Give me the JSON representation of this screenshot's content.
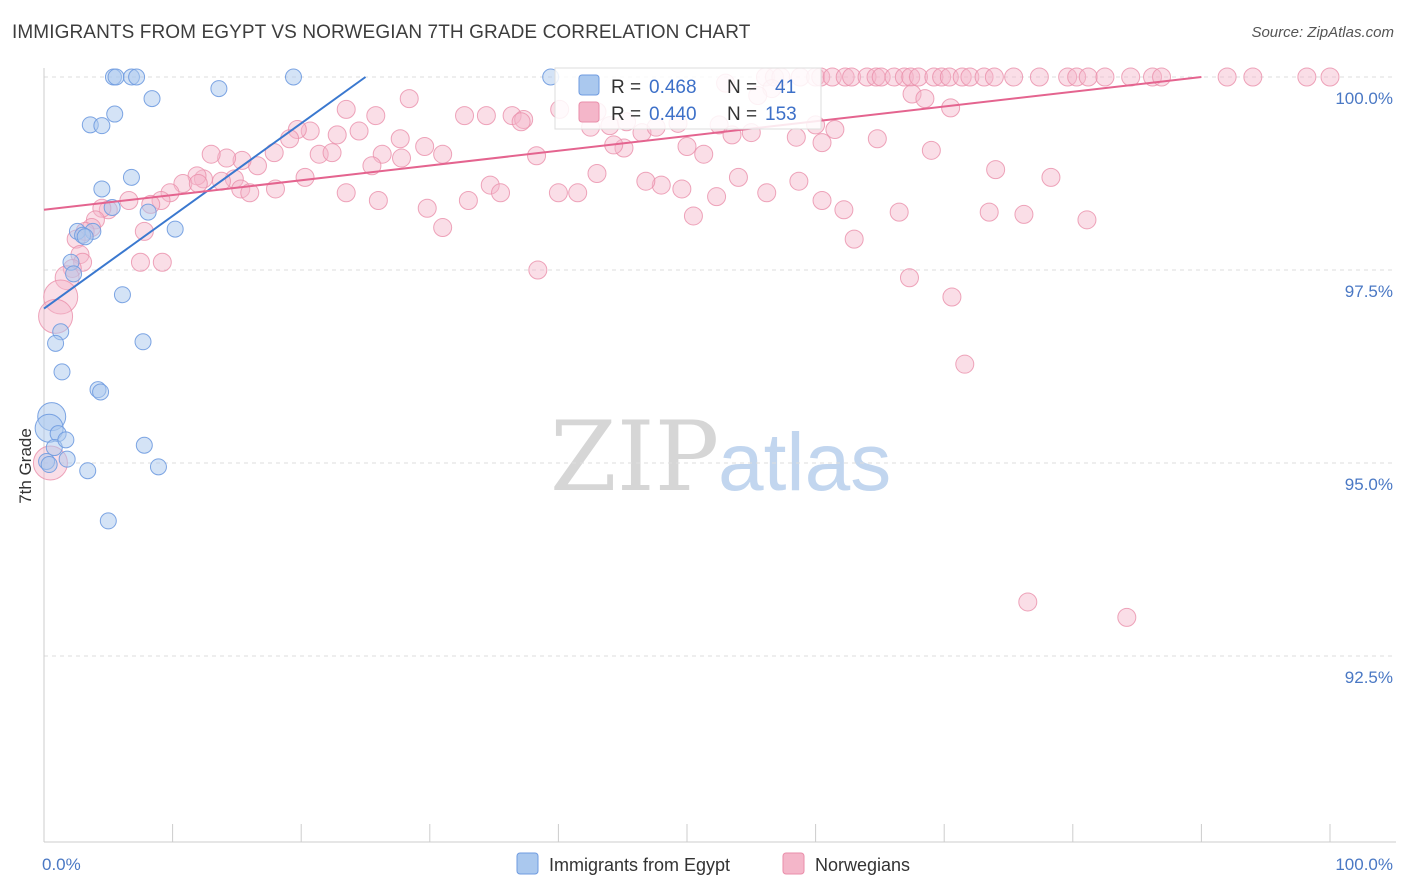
{
  "title": "IMMIGRANTS FROM EGYPT VS NORWEGIAN 7TH GRADE CORRELATION CHART",
  "source": "Source: ZipAtlas.com",
  "watermark": {
    "zip": "ZIP",
    "atlas": "atlas"
  },
  "colors": {
    "blue_fill": "#aac8ee",
    "blue_stroke": "#6f9be0",
    "blue_line": "#3a78cf",
    "pink_fill": "#f4b6c9",
    "pink_stroke": "#ea8eaa",
    "pink_line": "#e4648f",
    "tick_text": "#4a78c4",
    "grid": "#dddddd"
  },
  "legend": {
    "rows": [
      {
        "r_label": "R = ",
        "r_value": "0.468",
        "n_label": "N = ",
        "n_value": "41"
      },
      {
        "r_label": "R = ",
        "r_value": "0.440",
        "n_label": "N = ",
        "n_value": "153"
      }
    ]
  },
  "chart_data": {
    "type": "scatter",
    "title": "IMMIGRANTS FROM EGYPT VS NORWEGIAN 7TH GRADE CORRELATION CHART",
    "xlabel": "",
    "ylabel": "7th Grade",
    "xlim": [
      0,
      100
    ],
    "ylim": [
      90.2,
      100.25
    ],
    "y_ticks": [
      {
        "value": 100.0,
        "label": "100.0%"
      },
      {
        "value": 97.5,
        "label": "97.5%"
      },
      {
        "value": 95.0,
        "label": "95.0%"
      },
      {
        "value": 92.5,
        "label": "92.5%"
      }
    ],
    "x_tick_labels": [
      {
        "value": 0,
        "label": "0.0%"
      },
      {
        "value": 100,
        "label": "100.0%"
      }
    ],
    "x_minor_ticks": [
      0,
      10,
      20,
      30,
      40,
      50,
      60,
      70,
      80,
      90,
      100
    ],
    "series": [
      {
        "name": "Immigrants from Egypt",
        "color": "blue",
        "R": 0.468,
        "N": 41,
        "trend": [
          [
            0,
            97.0
          ],
          [
            25,
            100.0
          ]
        ],
        "points": [
          [
            5.4,
            100.0
          ],
          [
            5.6,
            100.0
          ],
          [
            6.8,
            100.0
          ],
          [
            7.2,
            100.0
          ],
          [
            19.4,
            100.0
          ],
          [
            39.4,
            100.0
          ],
          [
            13.6,
            99.85
          ],
          [
            8.4,
            99.72
          ],
          [
            5.5,
            99.52
          ],
          [
            3.6,
            99.38
          ],
          [
            4.5,
            99.37
          ],
          [
            6.8,
            98.7
          ],
          [
            4.5,
            98.55
          ],
          [
            5.3,
            98.31
          ],
          [
            8.1,
            98.25
          ],
          [
            10.2,
            98.03
          ],
          [
            2.6,
            98.0
          ],
          [
            3.8,
            98.0
          ],
          [
            3.0,
            97.95
          ],
          [
            3.2,
            97.93
          ],
          [
            2.1,
            97.6
          ],
          [
            2.3,
            97.45
          ],
          [
            1.3,
            96.7
          ],
          [
            0.9,
            96.55
          ],
          [
            6.1,
            97.18
          ],
          [
            7.7,
            96.57
          ],
          [
            1.4,
            96.18
          ],
          [
            4.2,
            95.95
          ],
          [
            4.4,
            95.92
          ],
          [
            0.6,
            95.6
          ],
          [
            0.4,
            95.45
          ],
          [
            1.1,
            95.38
          ],
          [
            0.8,
            95.2
          ],
          [
            1.7,
            95.3
          ],
          [
            1.8,
            95.05
          ],
          [
            0.2,
            95.02
          ],
          [
            7.8,
            95.23
          ],
          [
            0.4,
            94.98
          ],
          [
            3.4,
            94.9
          ],
          [
            8.9,
            94.95
          ],
          [
            5.0,
            94.25
          ]
        ]
      },
      {
        "name": "Norwegians",
        "color": "pink",
        "R": 0.44,
        "N": 153,
        "trend": [
          [
            0,
            98.28
          ],
          [
            90,
            100.0
          ]
        ],
        "points": [
          [
            56.1,
            100.0
          ],
          [
            56.8,
            100.0
          ],
          [
            57.3,
            100.0
          ],
          [
            58.8,
            100.0
          ],
          [
            60.0,
            100.0
          ],
          [
            60.4,
            100.0
          ],
          [
            61.3,
            100.0
          ],
          [
            62.3,
            100.0
          ],
          [
            62.8,
            100.0
          ],
          [
            64.0,
            100.0
          ],
          [
            64.7,
            100.0
          ],
          [
            65.1,
            100.0
          ],
          [
            66.1,
            100.0
          ],
          [
            66.9,
            100.0
          ],
          [
            67.4,
            100.0
          ],
          [
            68.0,
            100.0
          ],
          [
            69.2,
            100.0
          ],
          [
            69.8,
            100.0
          ],
          [
            70.4,
            100.0
          ],
          [
            71.4,
            100.0
          ],
          [
            72.0,
            100.0
          ],
          [
            73.1,
            100.0
          ],
          [
            73.9,
            100.0
          ],
          [
            75.4,
            100.0
          ],
          [
            77.4,
            100.0
          ],
          [
            79.6,
            100.0
          ],
          [
            80.3,
            100.0
          ],
          [
            81.2,
            100.0
          ],
          [
            82.5,
            100.0
          ],
          [
            84.5,
            100.0
          ],
          [
            86.2,
            100.0
          ],
          [
            86.9,
            100.0
          ],
          [
            94.0,
            100.0
          ],
          [
            100.0,
            100.0
          ],
          [
            98.2,
            100.0
          ],
          [
            92.0,
            100.0
          ],
          [
            53.0,
            99.92
          ],
          [
            56.6,
            99.85
          ],
          [
            55.5,
            99.76
          ],
          [
            67.5,
            99.78
          ],
          [
            68.5,
            99.72
          ],
          [
            70.5,
            99.6
          ],
          [
            40.1,
            99.58
          ],
          [
            43.0,
            99.55
          ],
          [
            36.4,
            99.5
          ],
          [
            28.4,
            99.72
          ],
          [
            37.3,
            99.45
          ],
          [
            37.1,
            99.42
          ],
          [
            42.5,
            99.35
          ],
          [
            44.0,
            99.37
          ],
          [
            52.5,
            99.38
          ],
          [
            55.0,
            99.28
          ],
          [
            60.0,
            99.38
          ],
          [
            61.5,
            99.32
          ],
          [
            60.5,
            99.15
          ],
          [
            58.5,
            99.22
          ],
          [
            64.8,
            99.2
          ],
          [
            69.0,
            99.05
          ],
          [
            53.5,
            99.25
          ],
          [
            46.5,
            99.28
          ],
          [
            47.6,
            99.35
          ],
          [
            49.3,
            99.4
          ],
          [
            45.3,
            99.42
          ],
          [
            45.1,
            99.08
          ],
          [
            44.3,
            99.12
          ],
          [
            38.3,
            98.98
          ],
          [
            34.4,
            99.5
          ],
          [
            31.0,
            99.0
          ],
          [
            29.6,
            99.1
          ],
          [
            27.7,
            99.2
          ],
          [
            27.8,
            98.95
          ],
          [
            26.3,
            99.0
          ],
          [
            25.5,
            98.85
          ],
          [
            21.4,
            99.0
          ],
          [
            22.4,
            99.02
          ],
          [
            24.5,
            99.3
          ],
          [
            25.8,
            99.5
          ],
          [
            23.5,
            99.58
          ],
          [
            22.8,
            99.25
          ],
          [
            20.7,
            99.3
          ],
          [
            19.7,
            99.32
          ],
          [
            19.1,
            99.2
          ],
          [
            17.9,
            99.02
          ],
          [
            16.6,
            98.85
          ],
          [
            15.4,
            98.92
          ],
          [
            14.2,
            98.95
          ],
          [
            13.0,
            99.0
          ],
          [
            14.8,
            98.68
          ],
          [
            15.3,
            98.55
          ],
          [
            12.4,
            98.68
          ],
          [
            11.9,
            98.72
          ],
          [
            10.8,
            98.62
          ],
          [
            13.8,
            98.65
          ],
          [
            9.8,
            98.5
          ],
          [
            9.1,
            98.4
          ],
          [
            8.3,
            98.35
          ],
          [
            6.6,
            98.4
          ],
          [
            5.0,
            98.28
          ],
          [
            4.5,
            98.3
          ],
          [
            4.0,
            98.15
          ],
          [
            3.7,
            98.05
          ],
          [
            3.2,
            98.0
          ],
          [
            2.5,
            97.9
          ],
          [
            2.8,
            97.7
          ],
          [
            3.0,
            97.6
          ],
          [
            2.2,
            97.52
          ],
          [
            1.8,
            97.4
          ],
          [
            1.3,
            97.15
          ],
          [
            0.9,
            96.9
          ],
          [
            0.5,
            95.0
          ],
          [
            7.5,
            97.6
          ],
          [
            9.2,
            97.6
          ],
          [
            7.8,
            98.0
          ],
          [
            12.0,
            98.62
          ],
          [
            16.0,
            98.5
          ],
          [
            18.0,
            98.55
          ],
          [
            20.3,
            98.7
          ],
          [
            23.5,
            98.5
          ],
          [
            26.0,
            98.4
          ],
          [
            29.8,
            98.3
          ],
          [
            31.0,
            98.05
          ],
          [
            33.0,
            98.4
          ],
          [
            34.7,
            98.6
          ],
          [
            35.5,
            98.5
          ],
          [
            40.0,
            98.5
          ],
          [
            41.5,
            98.5
          ],
          [
            43.0,
            98.75
          ],
          [
            48.0,
            98.6
          ],
          [
            52.3,
            98.45
          ],
          [
            46.8,
            98.65
          ],
          [
            49.6,
            98.55
          ],
          [
            50.5,
            98.2
          ],
          [
            54.0,
            98.7
          ],
          [
            56.2,
            98.5
          ],
          [
            58.7,
            98.65
          ],
          [
            60.5,
            98.4
          ],
          [
            62.2,
            98.28
          ],
          [
            66.5,
            98.25
          ],
          [
            74.0,
            98.8
          ],
          [
            78.3,
            98.7
          ],
          [
            81.1,
            98.15
          ],
          [
            73.5,
            98.25
          ],
          [
            63.0,
            97.9
          ],
          [
            67.3,
            97.4
          ],
          [
            71.6,
            96.28
          ],
          [
            70.6,
            97.15
          ],
          [
            76.2,
            98.22
          ],
          [
            50.0,
            99.1
          ],
          [
            51.3,
            99.0
          ],
          [
            32.7,
            99.5
          ],
          [
            38.4,
            97.5
          ],
          [
            76.5,
            93.2
          ],
          [
            84.2,
            93.0
          ]
        ]
      }
    ],
    "legend": [
      "Immigrants from Egypt",
      "Norwegians"
    ],
    "legend_placement": "top-center and bottom-center"
  }
}
